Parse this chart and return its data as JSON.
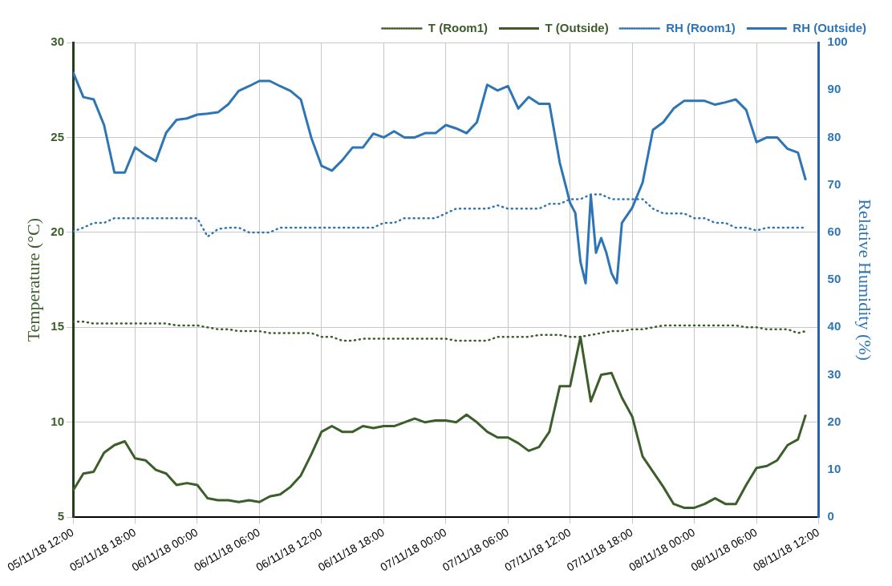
{
  "chart_data": {
    "type": "line",
    "ylabel": "Temperature (°C)",
    "y2label": "Relative Humidity (%)",
    "x": [
      "--11-05T12:00",
      "--11-05T13:00",
      "--11-05T14:00",
      "--11-05T15:00",
      "--11-05T16:00",
      "--11-05T17:00",
      "--11-05T18:00",
      "--11-05T19:00",
      "--11-05T20:00",
      "--11-05T21:00",
      "--11-05T22:00",
      "--11-05T23:00",
      "--11-06T00:00",
      "--11-06T01:00",
      "--11-06T02:00",
      "--11-06T03:00",
      "--11-06T04:00",
      "--11-06T05:00",
      "--11-06T06:00",
      "--11-06T07:00",
      "--11-06T08:00",
      "--11-06T09:00",
      "--11-06T10:00",
      "--11-06T11:00",
      "--11-06T12:00",
      "--11-06T13:00",
      "--11-06T14:00",
      "--11-06T15:00",
      "--11-06T16:00",
      "--11-06T17:00",
      "--11-06T18:00",
      "--11-06T19:00",
      "--11-06T20:00",
      "--11-06T21:00",
      "--11-06T22:00",
      "--11-06T23:00",
      "--11-07T00:00",
      "--11-07T01:00",
      "--11-07T02:00",
      "--11-07T03:00",
      "--11-07T04:00",
      "--11-07T05:00",
      "--11-07T06:00",
      "--11-07T07:00",
      "--11-07T08:00",
      "--11-07T09:00",
      "--11-07T10:00",
      "--11-07T11:00",
      "--11-07T12:00",
      "--11-07T13:00",
      "--11-07T14:00",
      "--11-07T15:00",
      "--11-07T16:00",
      "--11-07T17:00",
      "--11-07T18:00",
      "--11-07T19:00",
      "--11-07T20:00",
      "--11-07T21:00",
      "--11-07T22:00",
      "--11-07T23:00",
      "--11-08T00:00",
      "--11-08T01:00",
      "--11-08T02:00",
      "--11-08T03:00",
      "--11-08T04:00",
      "--11-08T05:00",
      "--11-08T06:00",
      "--11-08T07:00",
      "--11-08T08:00",
      "--11-08T09:00",
      "--11-08T10:00",
      "--11-08T10:45"
    ],
    "series": [
      {
        "name": "T (Room1)",
        "color": "#3b5e2b",
        "line_style": "dotted",
        "values": [
          15.3,
          15.3,
          15.2,
          15.2,
          15.2,
          15.2,
          15.2,
          15.2,
          15.2,
          15.2,
          15.1,
          15.1,
          15.1,
          15.0,
          14.9,
          14.9,
          14.8,
          14.8,
          14.8,
          14.7,
          14.7,
          14.7,
          14.7,
          14.7,
          14.5,
          14.5,
          14.3,
          14.3,
          14.4,
          14.4,
          14.4,
          14.4,
          14.4,
          14.4,
          14.4,
          14.4,
          14.4,
          14.3,
          14.3,
          14.3,
          14.3,
          14.5,
          14.5,
          14.5,
          14.5,
          14.6,
          14.6,
          14.6,
          14.5,
          14.5,
          14.6,
          14.7,
          14.8,
          14.8,
          14.9,
          14.9,
          15.0,
          15.1,
          15.1,
          15.1,
          15.1,
          15.1,
          15.1,
          15.1,
          15.1,
          15.0,
          15.0,
          14.9,
          14.9,
          14.9,
          14.7,
          14.8
        ]
      },
      {
        "name": "T (Outside)",
        "color": "#3b5e2b",
        "line_style": "solid",
        "values": [
          6.4,
          7.3,
          7.4,
          8.4,
          8.8,
          9.0,
          8.1,
          8.0,
          7.5,
          7.3,
          6.7,
          6.8,
          6.7,
          6.0,
          5.9,
          5.9,
          5.8,
          5.9,
          5.8,
          6.1,
          6.2,
          6.6,
          7.2,
          8.3,
          9.5,
          9.8,
          9.5,
          9.5,
          9.8,
          9.7,
          9.8,
          9.8,
          10.0,
          10.2,
          10.0,
          10.1,
          10.1,
          10.0,
          10.4,
          10.0,
          9.5,
          9.2,
          9.2,
          8.9,
          8.5,
          8.7,
          9.5,
          11.9,
          11.9,
          14.5,
          11.1,
          12.5,
          12.6,
          11.3,
          10.3,
          8.2,
          7.4,
          6.6,
          5.7,
          5.5,
          5.5,
          5.7,
          6.0,
          5.7,
          5.7,
          6.7,
          7.6,
          7.7,
          8.0,
          8.8,
          9.1,
          10.4
        ]
      },
      {
        "name": "RH (Room1)",
        "color": "#2e75b6",
        "line_style": "dotted",
        "axis": "y2",
        "values": [
          60.2,
          61,
          62,
          62,
          63,
          63,
          63,
          63,
          63,
          63,
          63,
          63,
          63,
          59.1,
          60.7,
          61,
          61,
          60,
          60,
          60,
          61,
          61,
          61,
          61,
          61,
          61,
          61,
          61,
          61,
          61,
          62,
          62,
          63,
          63,
          63,
          63,
          64,
          65,
          65,
          65,
          65,
          65.7,
          65,
          65,
          65,
          65,
          66,
          66,
          67,
          67,
          68,
          68,
          67,
          67,
          67,
          67,
          65,
          64,
          64,
          64,
          63,
          63,
          62,
          62,
          61,
          61,
          60.4,
          61,
          61,
          61,
          61,
          61
        ]
      },
      {
        "name": "RH (Outside)",
        "color": "#2e75b6",
        "line_style": "solid",
        "axis": "y2",
        "x": [
          "--11-05T12:00",
          "--11-05T13:00",
          "--11-05T14:00",
          "--11-05T15:00",
          "--11-05T16:00",
          "--11-05T17:00",
          "--11-05T18:00",
          "--11-05T19:00",
          "--11-05T20:00",
          "--11-05T21:00",
          "--11-05T22:00",
          "--11-05T23:00",
          "--11-06T00:00",
          "--11-06T01:00",
          "--11-06T02:00",
          "--11-06T03:00",
          "--11-06T04:00",
          "--11-06T05:00",
          "--11-06T06:00",
          "--11-06T07:00",
          "--11-06T08:00",
          "--11-06T09:00",
          "--11-06T10:00",
          "--11-06T11:00",
          "--11-06T12:00",
          "--11-06T13:00",
          "--11-06T14:00",
          "--11-06T15:00",
          "--11-06T16:00",
          "--11-06T17:00",
          "--11-06T18:00",
          "--11-06T19:00",
          "--11-06T20:00",
          "--11-06T21:00",
          "--11-06T22:00",
          "--11-06T23:00",
          "--11-07T00:00",
          "--11-07T01:00",
          "--11-07T02:00",
          "--11-07T03:00",
          "--11-07T04:00",
          "--11-07T05:00",
          "--11-07T06:00",
          "--11-07T07:00",
          "--11-07T08:00",
          "--11-07T09:00",
          "--11-07T10:00",
          "--11-07T11:00",
          "--11-07T12:00",
          "--11-07T12:30",
          "--11-07T13:00",
          "--11-07T13:30",
          "--11-07T14:00",
          "--11-07T14:30",
          "--11-07T15:00",
          "--11-07T15:30",
          "--11-07T16:00",
          "--11-07T16:30",
          "--11-07T17:00",
          "--11-07T18:00",
          "--11-07T19:00",
          "--11-07T20:00",
          "--11-07T21:00",
          "--11-07T22:00",
          "--11-07T23:00",
          "--11-08T00:00",
          "--11-08T01:00",
          "--11-08T02:00",
          "--11-08T03:00",
          "--11-08T04:00",
          "--11-08T05:00",
          "--11-08T06:00",
          "--11-08T07:00",
          "--11-08T08:00",
          "--11-08T09:00",
          "--11-08T10:00",
          "--11-08T10:45"
        ],
        "values": [
          93.8,
          88.5,
          88,
          82.6,
          72.6,
          72.6,
          77.9,
          76.3,
          75,
          81,
          83.7,
          84,
          84.8,
          85,
          85.3,
          87,
          89.8,
          90.8,
          91.9,
          91.9,
          90.8,
          89.8,
          88,
          80,
          74,
          73,
          75.2,
          77.9,
          77.9,
          80.8,
          80,
          81.3,
          80,
          80,
          80.9,
          80.9,
          82.6,
          81.9,
          80.9,
          83.2,
          91.1,
          89.9,
          90.8,
          86.1,
          88.5,
          87.1,
          87.1,
          74.7,
          66.2,
          64.1,
          53.8,
          49.3,
          67.8,
          55.7,
          58.8,
          55.7,
          51.4,
          49.3,
          62,
          65.2,
          70.5,
          81.6,
          83.2,
          86.1,
          87.7,
          87.7,
          87.7,
          86.9,
          87.4,
          88,
          85.8,
          79,
          80,
          80,
          77.6,
          76.8,
          71
        ]
      }
    ],
    "xlim": [
      "--11-05T12:00",
      "--11-08T12:00"
    ],
    "xticks": [
      {
        "value": "--11-05T12:00",
        "label": "05/11/18 12:00"
      },
      {
        "value": "--11-05T18:00",
        "label": "05/11/18 18:00"
      },
      {
        "value": "--11-06T00:00",
        "label": "06/11/18 00:00"
      },
      {
        "value": "--11-06T06:00",
        "label": "06/11/18 06:00"
      },
      {
        "value": "--11-06T12:00",
        "label": "06/11/18 12:00"
      },
      {
        "value": "--11-06T18:00",
        "label": "06/11/18 18:00"
      },
      {
        "value": "--11-07T00:00",
        "label": "07/11/18 00:00"
      },
      {
        "value": "--11-07T06:00",
        "label": "07/11/18 06:00"
      },
      {
        "value": "--11-07T12:00",
        "label": "07/11/18 12:00"
      },
      {
        "value": "--11-07T18:00",
        "label": "07/11/18 18:00"
      },
      {
        "value": "--11-08T00:00",
        "label": "08/11/18 00:00"
      },
      {
        "value": "--11-08T06:00",
        "label": "08/11/18 06:00"
      },
      {
        "value": "--11-08T12:00",
        "label": "08/11/18 12:00"
      }
    ],
    "ylim": [
      5,
      30
    ],
    "yticks": [
      5,
      10,
      15,
      20,
      25,
      30
    ],
    "y2lim": [
      0,
      100
    ],
    "y2ticks": [
      0,
      10,
      20,
      30,
      40,
      50,
      60,
      70,
      80,
      90,
      100
    ],
    "grid": true,
    "legend": "top right",
    "marker": "none"
  }
}
